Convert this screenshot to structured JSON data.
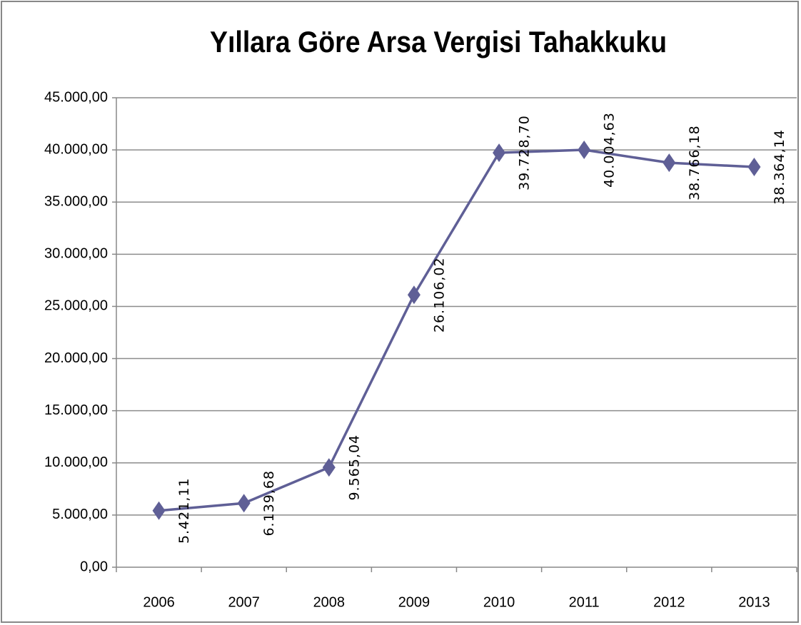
{
  "chart_data": {
    "type": "line",
    "title": "Yıllara Göre Arsa Vergisi Tahakkuku",
    "categories": [
      "2006",
      "2007",
      "2008",
      "2009",
      "2010",
      "2011",
      "2012",
      "2013"
    ],
    "series": [
      {
        "name": "Arsa Vergisi Tahakkuku",
        "color": "#5f5f96",
        "values": [
          5421.11,
          6139.68,
          9565.04,
          26106.02,
          39728.7,
          40004.63,
          38766.18,
          38364.14
        ],
        "value_labels": [
          "5.421,11",
          "6.139,68",
          "9.565,04",
          "26.106,02",
          "39.728,70",
          "40.004,63",
          "38.766,18",
          "38.364,14"
        ]
      }
    ],
    "ylim": [
      0,
      45000
    ],
    "yticks": [
      {
        "value": 0,
        "label": "0,00"
      },
      {
        "value": 5000,
        "label": "5.000,00"
      },
      {
        "value": 10000,
        "label": "10.000,00"
      },
      {
        "value": 15000,
        "label": "15.000,00"
      },
      {
        "value": 20000,
        "label": "20.000,00"
      },
      {
        "value": 25000,
        "label": "25.000,00"
      },
      {
        "value": 30000,
        "label": "30.000,00"
      },
      {
        "value": 35000,
        "label": "35.000,00"
      },
      {
        "value": 40000,
        "label": "40.000,00"
      },
      {
        "value": 45000,
        "label": "45.000,00"
      }
    ],
    "grid": true
  }
}
